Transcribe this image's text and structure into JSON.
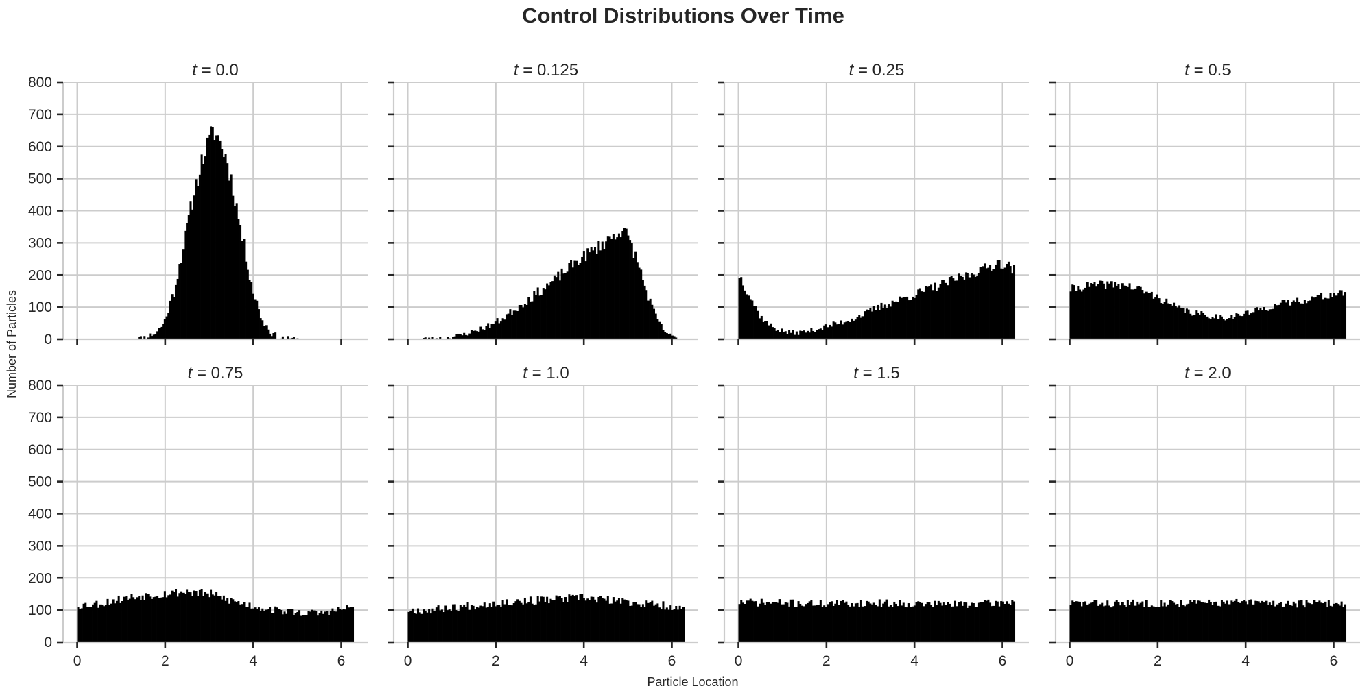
{
  "chart_data": {
    "type": "histogram",
    "title": "Control Distributions Over Time",
    "xlabel": "Particle Location",
    "ylabel": "Number of Particles",
    "grid": true,
    "sharex": true,
    "sharey": true,
    "layout": {
      "rows": 2,
      "cols": 4
    },
    "xlim": [
      -0.32,
      6.6
    ],
    "ylim": [
      0,
      800
    ],
    "xticks": [
      0,
      2,
      4,
      6
    ],
    "yticks": [
      0,
      100,
      200,
      300,
      400,
      500,
      600,
      700,
      800
    ],
    "bin_range": [
      0,
      6.2832
    ],
    "bins": 150,
    "bar_color": "#000000",
    "grid_color": "#cccccc",
    "panels": [
      {
        "t_label": "0.0",
        "profile": [
          [
            0,
            0
          ],
          [
            1.2,
            0
          ],
          [
            1.5,
            5
          ],
          [
            1.8,
            20
          ],
          [
            2.0,
            60
          ],
          [
            2.2,
            150
          ],
          [
            2.4,
            280
          ],
          [
            2.6,
            420
          ],
          [
            2.8,
            540
          ],
          [
            3.0,
            620
          ],
          [
            3.1,
            650
          ],
          [
            3.2,
            630
          ],
          [
            3.4,
            560
          ],
          [
            3.6,
            430
          ],
          [
            3.8,
            280
          ],
          [
            4.0,
            150
          ],
          [
            4.2,
            60
          ],
          [
            4.4,
            20
          ],
          [
            4.6,
            5
          ],
          [
            4.9,
            1
          ],
          [
            5.2,
            0
          ],
          [
            6.2832,
            0
          ]
        ],
        "noise": 14,
        "seed": 11
      },
      {
        "t_label": "0.125",
        "profile": [
          [
            0,
            0
          ],
          [
            0.3,
            1
          ],
          [
            0.6,
            3
          ],
          [
            0.9,
            6
          ],
          [
            1.2,
            12
          ],
          [
            1.5,
            25
          ],
          [
            1.8,
            40
          ],
          [
            2.1,
            60
          ],
          [
            2.4,
            90
          ],
          [
            2.7,
            120
          ],
          [
            3.0,
            150
          ],
          [
            3.3,
            180
          ],
          [
            3.6,
            215
          ],
          [
            3.9,
            250
          ],
          [
            4.2,
            275
          ],
          [
            4.5,
            305
          ],
          [
            4.7,
            325
          ],
          [
            4.85,
            340
          ],
          [
            5.0,
            320
          ],
          [
            5.2,
            250
          ],
          [
            5.4,
            160
          ],
          [
            5.6,
            80
          ],
          [
            5.8,
            30
          ],
          [
            6.0,
            8
          ],
          [
            6.2,
            1
          ],
          [
            6.2832,
            0
          ]
        ],
        "noise": 12,
        "seed": 23
      },
      {
        "t_label": "0.25",
        "profile": [
          [
            0,
            205
          ],
          [
            0.1,
            180
          ],
          [
            0.2,
            150
          ],
          [
            0.35,
            110
          ],
          [
            0.5,
            70
          ],
          [
            0.7,
            45
          ],
          [
            0.9,
            30
          ],
          [
            1.1,
            22
          ],
          [
            1.3,
            20
          ],
          [
            1.6,
            25
          ],
          [
            2.0,
            40
          ],
          [
            2.4,
            55
          ],
          [
            2.8,
            75
          ],
          [
            3.2,
            100
          ],
          [
            3.6,
            120
          ],
          [
            4.0,
            140
          ],
          [
            4.4,
            160
          ],
          [
            4.8,
            180
          ],
          [
            5.2,
            200
          ],
          [
            5.6,
            220
          ],
          [
            5.9,
            240
          ],
          [
            6.1,
            230
          ],
          [
            6.2832,
            215
          ]
        ],
        "noise": 11,
        "seed": 37
      },
      {
        "t_label": "0.5",
        "profile": [
          [
            0,
            155
          ],
          [
            0.4,
            165
          ],
          [
            0.8,
            170
          ],
          [
            1.2,
            170
          ],
          [
            1.6,
            155
          ],
          [
            2.0,
            130
          ],
          [
            2.4,
            100
          ],
          [
            2.8,
            82
          ],
          [
            3.2,
            72
          ],
          [
            3.6,
            68
          ],
          [
            4.0,
            80
          ],
          [
            4.4,
            95
          ],
          [
            4.8,
            110
          ],
          [
            5.2,
            120
          ],
          [
            5.6,
            130
          ],
          [
            6.0,
            140
          ],
          [
            6.2832,
            145
          ]
        ],
        "noise": 10,
        "seed": 41
      },
      {
        "t_label": "0.75",
        "profile": [
          [
            0,
            115
          ],
          [
            0.5,
            120
          ],
          [
            1.0,
            135
          ],
          [
            1.5,
            145
          ],
          [
            2.0,
            152
          ],
          [
            2.5,
            158
          ],
          [
            3.0,
            150
          ],
          [
            3.5,
            130
          ],
          [
            4.0,
            112
          ],
          [
            4.5,
            100
          ],
          [
            5.0,
            92
          ],
          [
            5.5,
            90
          ],
          [
            6.0,
            102
          ],
          [
            6.2832,
            110
          ]
        ],
        "noise": 11,
        "seed": 53
      },
      {
        "t_label": "1.0",
        "profile": [
          [
            0,
            100
          ],
          [
            0.5,
            100
          ],
          [
            1.0,
            108
          ],
          [
            1.5,
            115
          ],
          [
            2.0,
            122
          ],
          [
            2.5,
            128
          ],
          [
            3.0,
            130
          ],
          [
            3.5,
            135
          ],
          [
            4.0,
            138
          ],
          [
            4.5,
            132
          ],
          [
            5.0,
            125
          ],
          [
            5.5,
            118
          ],
          [
            6.0,
            112
          ],
          [
            6.2832,
            100
          ]
        ],
        "noise": 11,
        "seed": 67
      },
      {
        "t_label": "1.5",
        "profile": [
          [
            0,
            125
          ],
          [
            1.0,
            122
          ],
          [
            2.0,
            120
          ],
          [
            3.0,
            122
          ],
          [
            4.0,
            120
          ],
          [
            5.0,
            118
          ],
          [
            6.0,
            122
          ],
          [
            6.2832,
            128
          ]
        ],
        "noise": 10,
        "seed": 71
      },
      {
        "t_label": "2.0",
        "profile": [
          [
            0,
            122
          ],
          [
            1.0,
            120
          ],
          [
            2.0,
            122
          ],
          [
            3.0,
            122
          ],
          [
            4.0,
            124
          ],
          [
            5.0,
            120
          ],
          [
            6.0,
            120
          ],
          [
            6.2832,
            120
          ]
        ],
        "noise": 10,
        "seed": 83
      }
    ]
  }
}
